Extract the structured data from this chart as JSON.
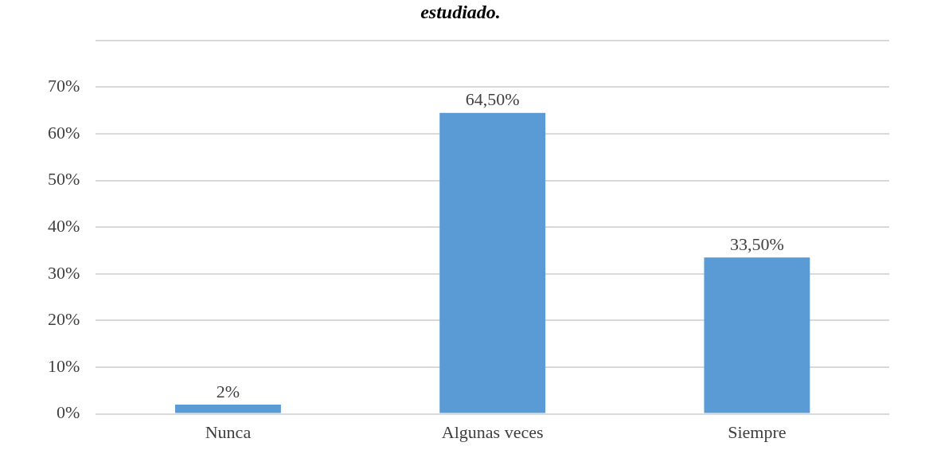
{
  "chart_data": {
    "type": "bar",
    "title": "estudiado.",
    "categories": [
      "Nunca",
      "Algunas veces",
      "Siempre"
    ],
    "values": [
      2,
      64.5,
      33.5
    ],
    "value_labels": [
      "2%",
      "64,50%",
      "33,50%"
    ],
    "color": "#5b9bd5",
    "ylim": [
      0,
      80
    ],
    "yticks": [
      {
        "value": 0,
        "label": "0%"
      },
      {
        "value": 10,
        "label": "10%"
      },
      {
        "value": 20,
        "label": "20%"
      },
      {
        "value": 30,
        "label": "30%"
      },
      {
        "value": 40,
        "label": "40%"
      },
      {
        "value": 50,
        "label": "50%"
      },
      {
        "value": 60,
        "label": "60%"
      },
      {
        "value": 70,
        "label": "70%"
      },
      {
        "value": 80,
        "label": null
      }
    ],
    "grid": true,
    "legend": false
  }
}
